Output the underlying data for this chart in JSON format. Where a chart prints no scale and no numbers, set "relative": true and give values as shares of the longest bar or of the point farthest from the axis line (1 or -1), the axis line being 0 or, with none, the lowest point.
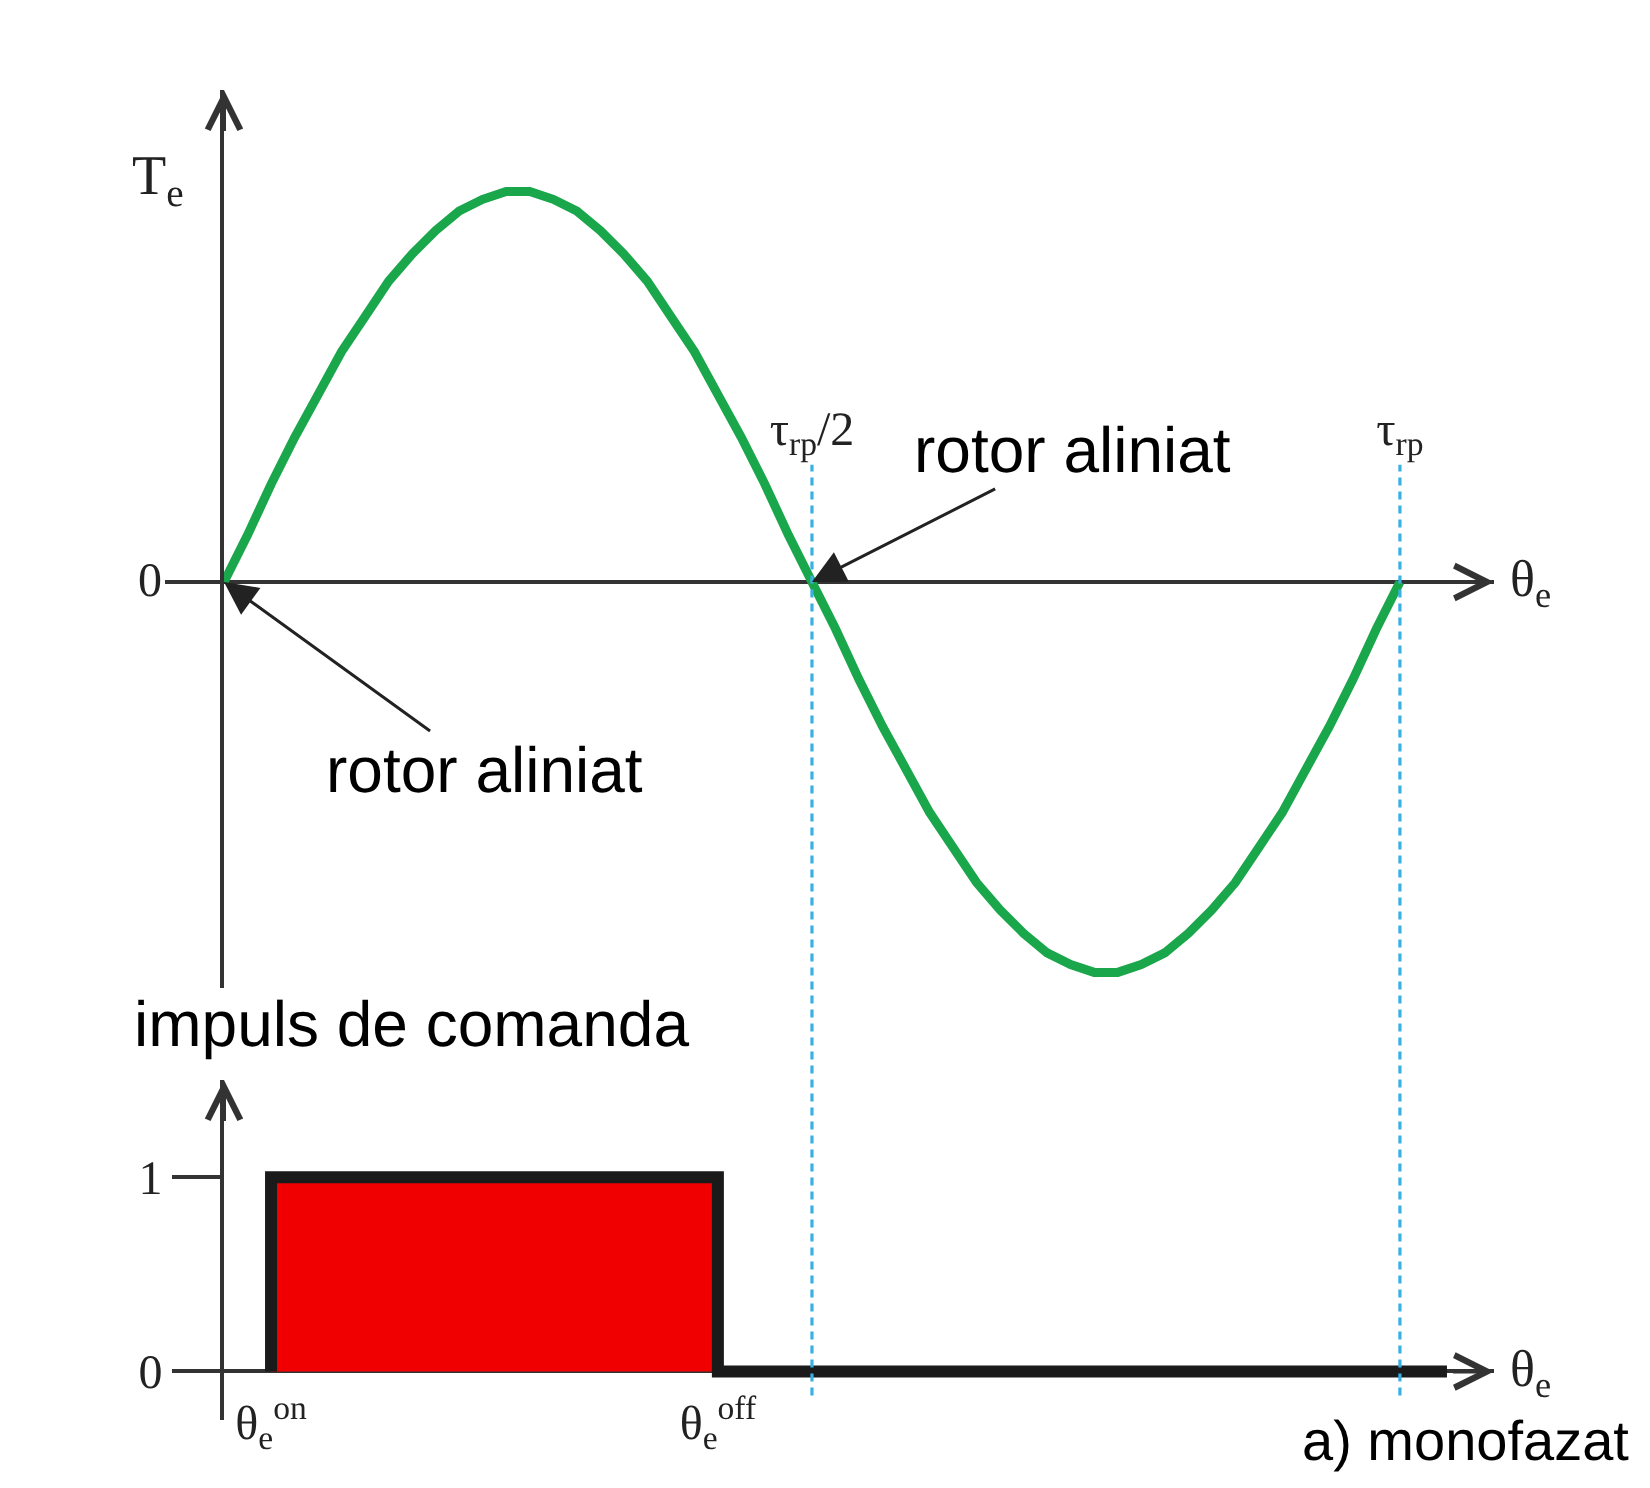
{
  "chart_data": [
    {
      "type": "line",
      "relative": true,
      "ylabel": "T$_{e}$",
      "xlabel": "θ$_{e}$",
      "categories": [
        null,
        null,
        null,
        null,
        null,
        null,
        null,
        null,
        null,
        null,
        null,
        null,
        null,
        null,
        null,
        null,
        null,
        null,
        null,
        null,
        null,
        null,
        null,
        null,
        null,
        "τ$_{rp}$/2",
        null,
        null,
        null,
        null,
        null,
        null,
        null,
        null,
        null,
        null,
        null,
        null,
        null,
        null,
        null,
        null,
        null,
        null,
        null,
        null,
        null,
        null,
        null,
        null,
        "τ$_{rp}$",
        null,
        null,
        null,
        null
      ],
      "series": [
        {
          "color": "#1aa64b",
          "values": [
            0,
            0.12,
            0.25,
            0.37,
            0.48,
            0.59,
            0.68,
            0.77,
            0.84,
            0.9,
            0.95,
            0.98,
            1,
            1,
            0.98,
            0.95,
            0.9,
            0.84,
            0.77,
            0.68,
            0.59,
            0.48,
            0.37,
            0.25,
            0.12,
            0,
            -0.12,
            -0.25,
            -0.37,
            -0.48,
            -0.59,
            -0.68,
            -0.77,
            -0.84,
            -0.9,
            -0.95,
            -0.98,
            -1,
            -1,
            -0.98,
            -0.95,
            -0.9,
            -0.84,
            -0.77,
            -0.68,
            -0.59,
            -0.48,
            -0.37,
            -0.25,
            -0.12,
            0,
            null,
            null,
            null,
            null
          ]
        }
      ],
      "ref_lines": [
        {
          "axis": "x",
          "value": "τ$_{rp}$/2",
          "color": "#3ab0e2",
          "line_style": "dashed"
        },
        {
          "axis": "x",
          "value": "τ$_{rp}$",
          "color": "#3ab0e2",
          "line_style": "dashed"
        }
      ],
      "annotations": [
        "0",
        "rotor aliniat",
        {
          "text": "rotor aliniat",
          "x": "τ$_{rp}$/2",
          "y": 0
        }
      ]
    },
    {
      "type": "step",
      "ylabel": "impuls de comanda",
      "xlabel": "θ$_{e}$",
      "ylim": [
        -0.25,
        1.5
      ],
      "yticks": [
        0,
        1
      ],
      "categories": [
        null,
        null,
        "θ$_{e}$$^{on}$",
        null,
        null,
        null,
        null,
        null,
        null,
        null,
        null,
        null,
        null,
        null,
        null,
        null,
        null,
        null,
        null,
        null,
        null,
        "θ$_{e}$$^{off}$",
        null,
        null,
        null,
        null,
        null,
        null,
        null,
        null,
        null,
        null,
        null,
        null,
        null,
        null,
        null,
        null,
        null,
        null,
        null,
        null,
        null,
        null,
        null,
        null,
        null,
        null,
        null,
        null,
        null,
        null,
        null,
        null,
        null
      ],
      "series": [
        {
          "type": "area",
          "color": "#f00000",
          "values": [
            null,
            null,
            1,
            1,
            1,
            1,
            1,
            1,
            1,
            1,
            1,
            1,
            1,
            1,
            1,
            1,
            1,
            1,
            1,
            1,
            1,
            1,
            null,
            null,
            null,
            null,
            null,
            null,
            null,
            null,
            null,
            null,
            null,
            null,
            null,
            null,
            null,
            null,
            null,
            null,
            null,
            null,
            null,
            null,
            null,
            null,
            null,
            null,
            null,
            null,
            null,
            null,
            null,
            null,
            null
          ]
        },
        {
          "color": "#1a1a1a",
          "values": [
            null,
            null,
            0,
            1,
            1,
            1,
            1,
            1,
            1,
            1,
            1,
            1,
            1,
            1,
            1,
            1,
            1,
            1,
            1,
            1,
            1,
            1,
            0,
            0,
            0,
            0,
            0,
            0,
            0,
            0,
            0,
            0,
            0,
            0,
            0,
            0,
            0,
            0,
            0,
            0,
            0,
            0,
            0,
            0,
            0,
            0,
            0,
            0,
            0,
            0,
            0,
            0,
            0,
            null,
            null
          ]
        }
      ],
      "annotations": [
        "a) monofazat"
      ]
    }
  ]
}
